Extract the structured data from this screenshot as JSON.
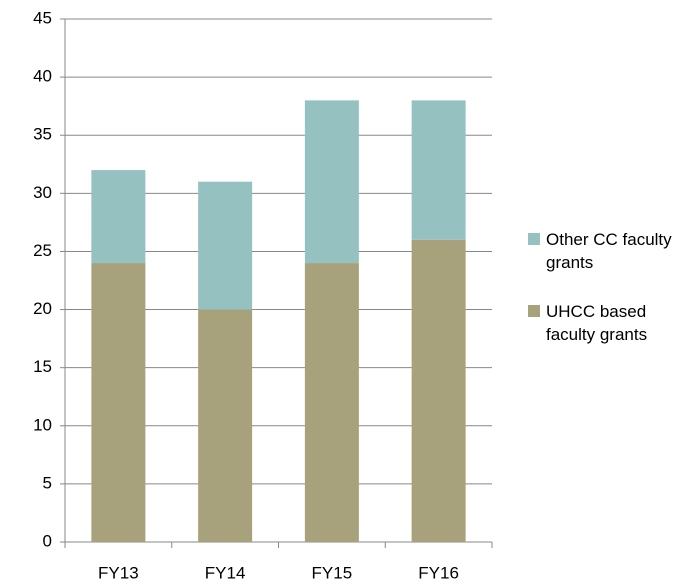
{
  "chart_data": {
    "type": "bar",
    "stacked": true,
    "categories": [
      "FY13",
      "FY14",
      "FY15",
      "FY16"
    ],
    "series": [
      {
        "name": "UHCC based faculty grants",
        "color": "#a7a27b",
        "values": [
          24,
          20,
          24,
          26
        ]
      },
      {
        "name": "Other CC faculty grants",
        "color": "#96c1c1",
        "values": [
          8,
          11,
          14,
          12
        ]
      }
    ],
    "ylim": [
      0,
      45
    ],
    "yticks": [
      0,
      5,
      10,
      15,
      20,
      25,
      30,
      35,
      40,
      45
    ],
    "grid": true
  }
}
